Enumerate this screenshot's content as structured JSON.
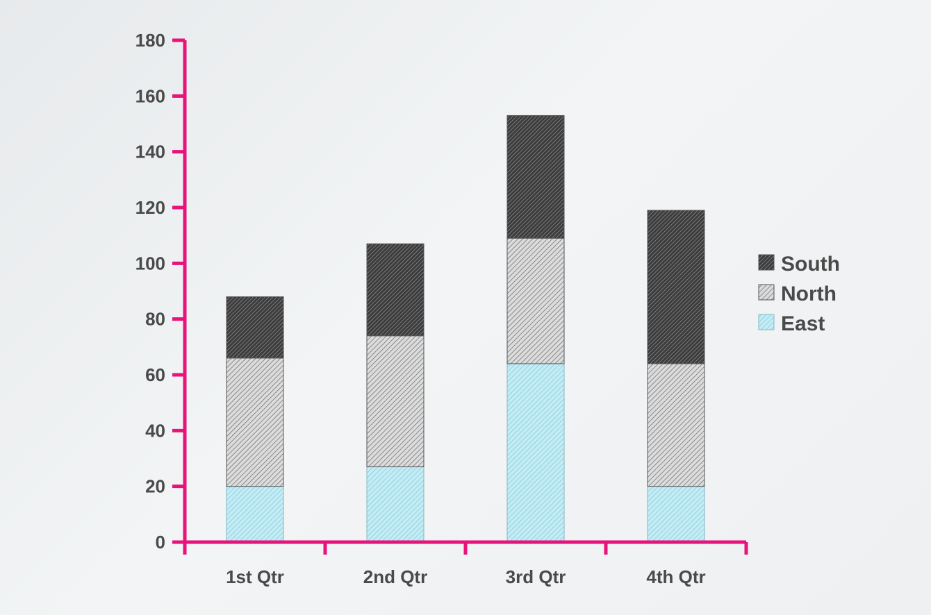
{
  "chart_data": {
    "type": "bar",
    "stacked": true,
    "categories": [
      "1st Qtr",
      "2nd Qtr",
      "3rd Qtr",
      "4th Qtr"
    ],
    "series": [
      {
        "name": "East",
        "values": [
          20,
          27,
          64,
          20
        ],
        "color": "#b9e8f2"
      },
      {
        "name": "North",
        "values": [
          46,
          47,
          45,
          44
        ],
        "color": "#c9c9c9"
      },
      {
        "name": "South",
        "values": [
          22,
          33,
          44,
          55
        ],
        "color": "#5a5a5a"
      }
    ],
    "ylim": [
      0,
      180
    ],
    "yticks": [
      "0",
      "20",
      "40",
      "60",
      "80",
      "100",
      "120",
      "140",
      "160",
      "180"
    ],
    "legend_order": [
      "South",
      "North",
      "East"
    ],
    "legend_position": "right",
    "axis_color": "#e8137a",
    "grid": false
  }
}
